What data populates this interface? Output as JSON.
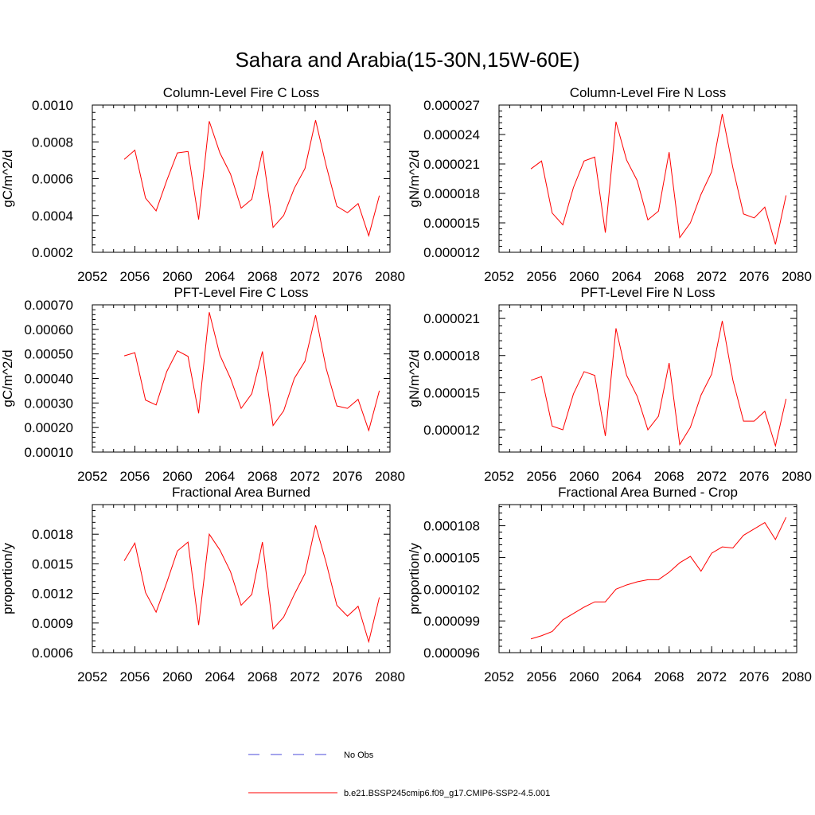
{
  "title": "Sahara and Arabia(15-30N,15W-60E)",
  "legend": {
    "obs_label": "No Obs",
    "model_label": "b.e21.BSSP245cmip6.f09_g17.CMIP6-SSP2-4.5.001",
    "obs_color": "#4a4ad8",
    "model_color": "#ff0000"
  },
  "chart_data": [
    {
      "type": "line",
      "title": "Column-Level Fire C Loss",
      "xlabel": "",
      "ylabel": "gC/m^2/d",
      "xlim": [
        2052,
        2080
      ],
      "ylim": [
        0.0002,
        0.001
      ],
      "xticks": [
        "2052",
        "2056",
        "2060",
        "2064",
        "2068",
        "2072",
        "2076",
        "2080"
      ],
      "yticks": [
        "0.0002",
        "0.0004",
        "0.0006",
        "0.0008",
        "0.0010"
      ],
      "x": [
        2055,
        2056,
        2057,
        2058,
        2059,
        2060,
        2061,
        2062,
        2063,
        2064,
        2065,
        2066,
        2067,
        2068,
        2069,
        2070,
        2071,
        2072,
        2073,
        2074,
        2075,
        2076,
        2077,
        2078,
        2079
      ],
      "series": [
        {
          "name": "b.e21.BSSP245cmip6.f09_g17.CMIP6-SSP2-4.5.001",
          "values": [
            0.000705,
            0.000755,
            0.000495,
            0.000425,
            0.00059,
            0.00074,
            0.000748,
            0.000378,
            0.000912,
            0.00074,
            0.000625,
            0.00044,
            0.000488,
            0.00075,
            0.000335,
            0.0004,
            0.000548,
            0.000655,
            0.000918,
            0.00067,
            0.00045,
            0.000415,
            0.000465,
            0.00029,
            0.000508
          ]
        }
      ]
    },
    {
      "type": "line",
      "title": "Column-Level Fire N Loss",
      "xlabel": "",
      "ylabel": "gN/m^2/d",
      "xlim": [
        2052,
        2080
      ],
      "ylim": [
        1.2e-05,
        2.7e-05
      ],
      "xticks": [
        "2052",
        "2056",
        "2060",
        "2064",
        "2068",
        "2072",
        "2076",
        "2080"
      ],
      "yticks": [
        "0.000012",
        "0.000015",
        "0.000018",
        "0.000021",
        "0.000024",
        "0.000027"
      ],
      "x": [
        2055,
        2056,
        2057,
        2058,
        2059,
        2060,
        2061,
        2062,
        2063,
        2064,
        2065,
        2066,
        2067,
        2068,
        2069,
        2070,
        2071,
        2072,
        2073,
        2074,
        2075,
        2076,
        2077,
        2078,
        2079
      ],
      "series": [
        {
          "name": "b.e21.BSSP245cmip6.f09_g17.CMIP6-SSP2-4.5.001",
          "values": [
            2.05e-05,
            2.13e-05,
            1.6e-05,
            1.48e-05,
            1.86e-05,
            2.13e-05,
            2.17e-05,
            1.4e-05,
            2.53e-05,
            2.14e-05,
            1.93e-05,
            1.53e-05,
            1.62e-05,
            2.22e-05,
            1.35e-05,
            1.5e-05,
            1.79e-05,
            2.02e-05,
            2.61e-05,
            2.06e-05,
            1.59e-05,
            1.55e-05,
            1.66e-05,
            1.28e-05,
            1.78e-05
          ]
        }
      ]
    },
    {
      "type": "line",
      "title": "PFT-Level Fire C Loss",
      "xlabel": "",
      "ylabel": "gC/m^2/d",
      "xlim": [
        2052,
        2080
      ],
      "ylim": [
        0.0001,
        0.0007
      ],
      "xticks": [
        "2052",
        "2056",
        "2060",
        "2064",
        "2068",
        "2072",
        "2076",
        "2080"
      ],
      "yticks": [
        "0.00010",
        "0.00020",
        "0.00030",
        "0.00040",
        "0.00050",
        "0.00060",
        "0.00070"
      ],
      "x": [
        2055,
        2056,
        2057,
        2058,
        2059,
        2060,
        2061,
        2062,
        2063,
        2064,
        2065,
        2066,
        2067,
        2068,
        2069,
        2070,
        2071,
        2072,
        2073,
        2074,
        2075,
        2076,
        2077,
        2078,
        2079
      ],
      "series": [
        {
          "name": "b.e21.BSSP245cmip6.f09_g17.CMIP6-SSP2-4.5.001",
          "values": [
            0.000492,
            0.000505,
            0.000312,
            0.000292,
            0.000428,
            0.000513,
            0.00049,
            0.000258,
            0.00067,
            0.000495,
            0.0004,
            0.000278,
            0.000338,
            0.00051,
            0.000208,
            0.000268,
            0.0004,
            0.00047,
            0.000658,
            0.00044,
            0.000288,
            0.000278,
            0.000315,
            0.000188,
            0.00035
          ]
        }
      ]
    },
    {
      "type": "line",
      "title": "PFT-Level Fire N Loss",
      "xlabel": "",
      "ylabel": "gN/m^2/d",
      "xlim": [
        2052,
        2080
      ],
      "ylim": [
        1.02e-05,
        2.21e-05
      ],
      "xticks": [
        "2052",
        "2056",
        "2060",
        "2064",
        "2068",
        "2072",
        "2076",
        "2080"
      ],
      "yticks": [
        "0.000012",
        "0.000015",
        "0.000018",
        "0.000021"
      ],
      "x": [
        2055,
        2056,
        2057,
        2058,
        2059,
        2060,
        2061,
        2062,
        2063,
        2064,
        2065,
        2066,
        2067,
        2068,
        2069,
        2070,
        2071,
        2072,
        2073,
        2074,
        2075,
        2076,
        2077,
        2078,
        2079
      ],
      "series": [
        {
          "name": "b.e21.BSSP245cmip6.f09_g17.CMIP6-SSP2-4.5.001",
          "values": [
            1.6e-05,
            1.63e-05,
            1.23e-05,
            1.2e-05,
            1.49e-05,
            1.67e-05,
            1.64e-05,
            1.15e-05,
            2.02e-05,
            1.64e-05,
            1.47e-05,
            1.2e-05,
            1.31e-05,
            1.74e-05,
            1.08e-05,
            1.22e-05,
            1.48e-05,
            1.65e-05,
            2.08e-05,
            1.6e-05,
            1.27e-05,
            1.27e-05,
            1.35e-05,
            1.07e-05,
            1.45e-05
          ]
        }
      ]
    },
    {
      "type": "line",
      "title": "Fractional Area Burned",
      "xlabel": "",
      "ylabel": "proportion/y",
      "xlim": [
        2052,
        2080
      ],
      "ylim": [
        0.0006,
        0.0021
      ],
      "xticks": [
        "2052",
        "2056",
        "2060",
        "2064",
        "2068",
        "2072",
        "2076",
        "2080"
      ],
      "yticks": [
        "0.0006",
        "0.0009",
        "0.0012",
        "0.0015",
        "0.0018"
      ],
      "x": [
        2055,
        2056,
        2057,
        2058,
        2059,
        2060,
        2061,
        2062,
        2063,
        2064,
        2065,
        2066,
        2067,
        2068,
        2069,
        2070,
        2071,
        2072,
        2073,
        2074,
        2075,
        2076,
        2077,
        2078,
        2079
      ],
      "series": [
        {
          "name": "b.e21.BSSP245cmip6.f09_g17.CMIP6-SSP2-4.5.001",
          "values": [
            0.00153,
            0.00171,
            0.00121,
            0.00101,
            0.00131,
            0.00163,
            0.00172,
            0.00088,
            0.0018,
            0.00164,
            0.00142,
            0.00108,
            0.00119,
            0.00172,
            0.00084,
            0.00096,
            0.00119,
            0.0014,
            0.00189,
            0.00151,
            0.00108,
            0.00097,
            0.00107,
            0.00071,
            0.00116
          ]
        }
      ]
    },
    {
      "type": "line",
      "title": "Fractional Area Burned - Crop",
      "xlabel": "",
      "ylabel": "proportion/y",
      "xlim": [
        2052,
        2080
      ],
      "ylim": [
        9.6e-05,
        0.00011
      ],
      "xticks": [
        "2052",
        "2056",
        "2060",
        "2064",
        "2068",
        "2072",
        "2076",
        "2080"
      ],
      "yticks": [
        "0.000096",
        "0.000099",
        "0.000102",
        "0.000105",
        "0.000108"
      ],
      "x": [
        2055,
        2056,
        2057,
        2058,
        2059,
        2060,
        2061,
        2062,
        2063,
        2064,
        2065,
        2066,
        2067,
        2068,
        2069,
        2070,
        2071,
        2072,
        2073,
        2074,
        2075,
        2076,
        2077,
        2078,
        2079
      ],
      "series": [
        {
          "name": "b.e21.BSSP245cmip6.f09_g17.CMIP6-SSP2-4.5.001",
          "values": [
            9.73e-05,
            9.76e-05,
            9.8e-05,
            9.91e-05,
            9.97e-05,
            0.0001003,
            0.0001008,
            0.0001008,
            0.000102,
            0.0001024,
            0.0001027,
            0.0001029,
            0.0001029,
            0.0001036,
            0.0001045,
            0.0001051,
            0.0001037,
            0.0001054,
            0.000106,
            0.0001059,
            0.0001071,
            0.0001077,
            0.0001083,
            0.0001067,
            0.0001088
          ]
        }
      ]
    }
  ]
}
